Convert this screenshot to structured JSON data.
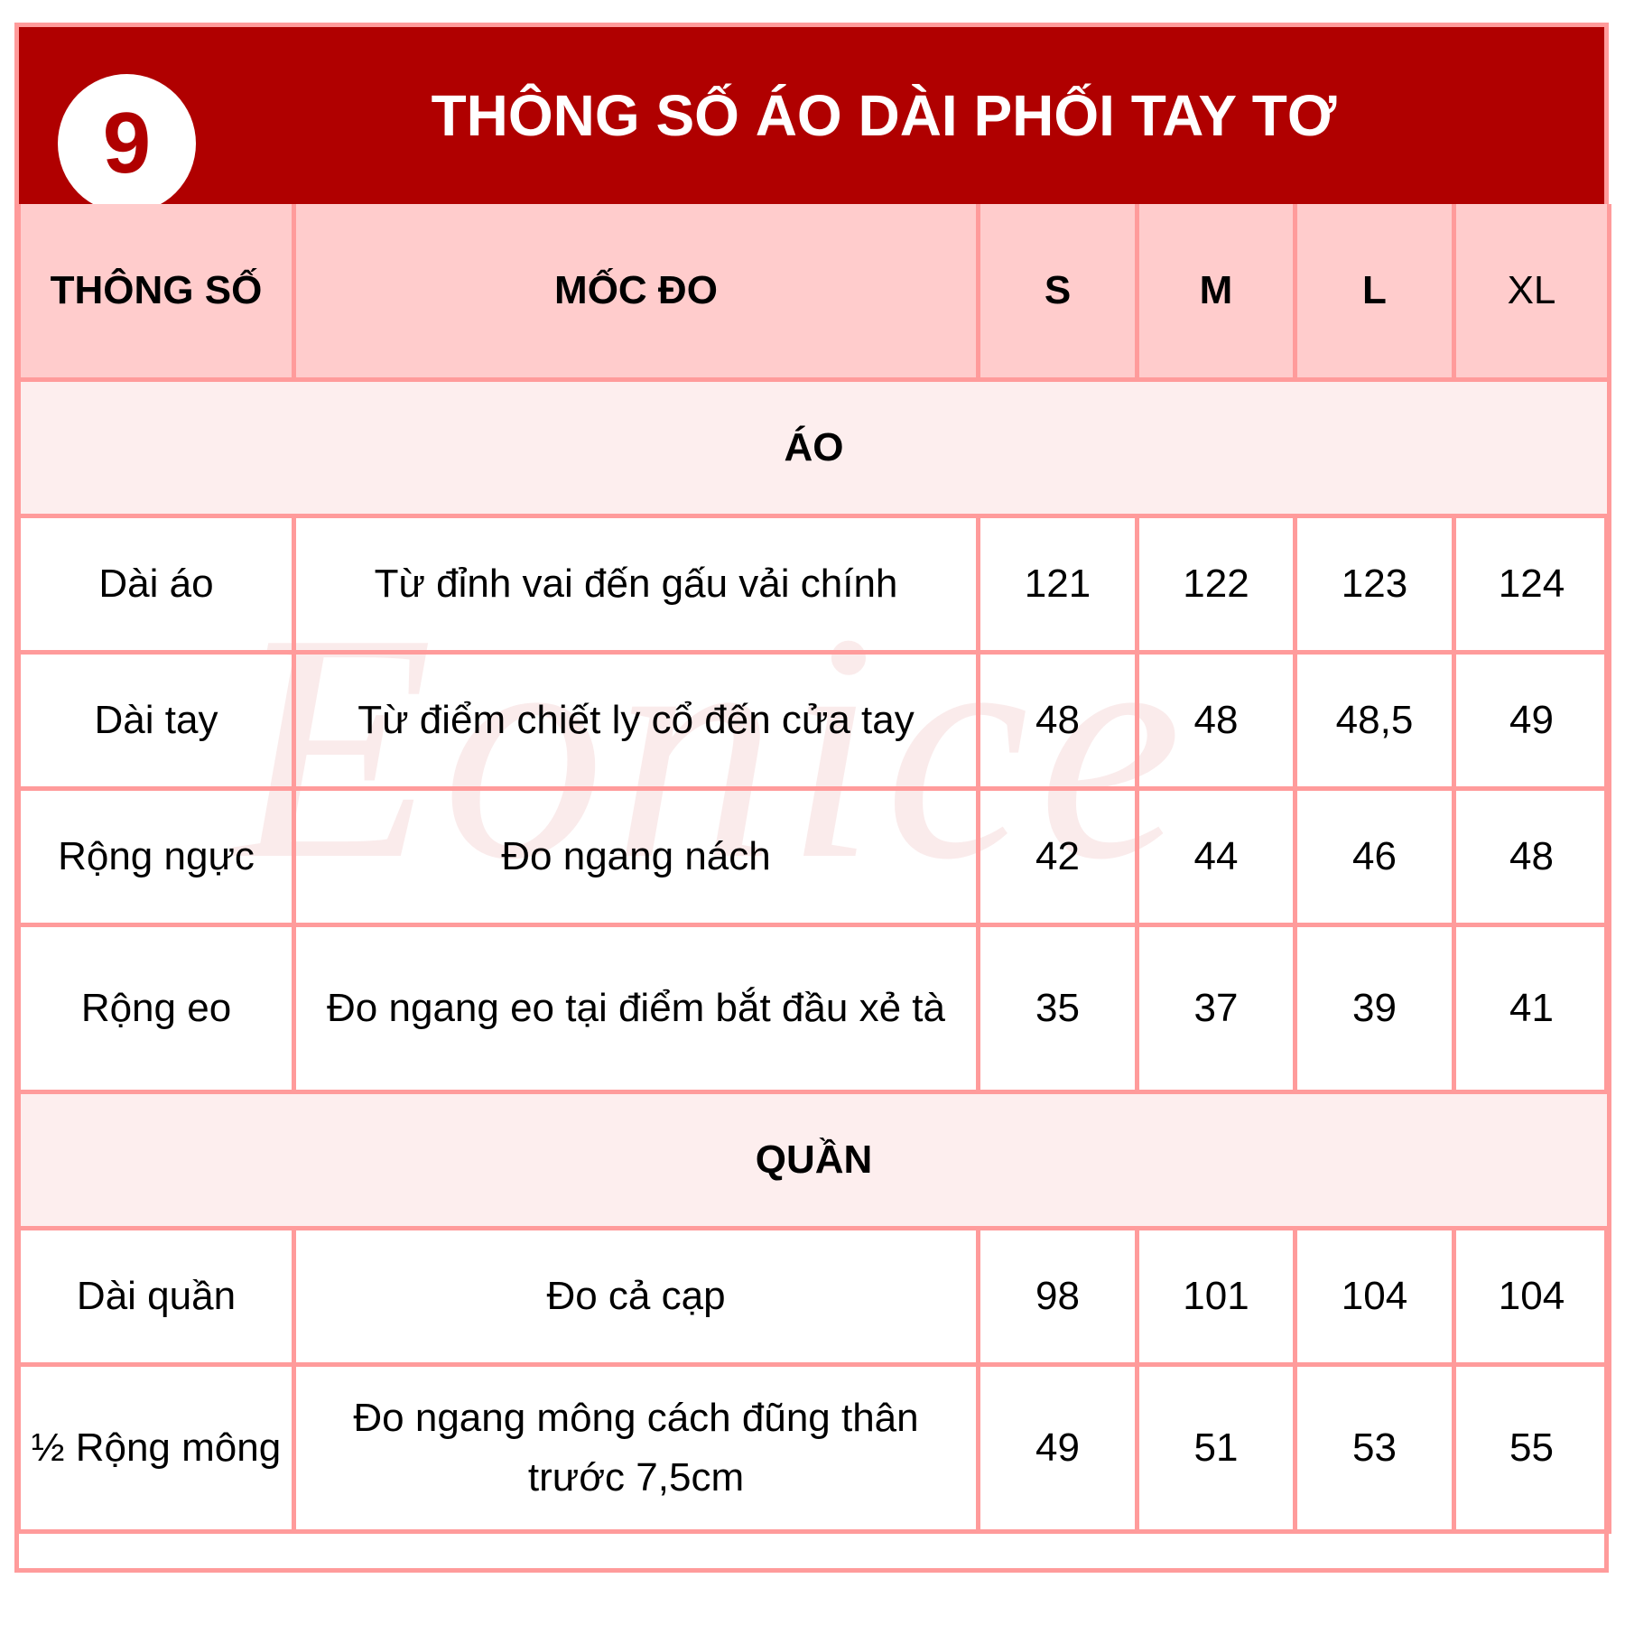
{
  "header": {
    "badge_number": "9",
    "title": "THÔNG SỐ ÁO DÀI PHỐI TAY TƠ"
  },
  "watermark": "Eonice",
  "colors": {
    "title_bg": "#b00000",
    "border": "#ff9b9b",
    "header_row_bg": "#ffcccc",
    "section_bg": "#fdeeee"
  },
  "columns": [
    "THÔNG SỐ",
    "MỐC ĐO",
    "S",
    "M",
    "L",
    "XL"
  ],
  "sections": [
    {
      "title": "ÁO",
      "rows": [
        {
          "name": "Dài áo",
          "measure": "Từ đỉnh vai đến gấu vải chính",
          "values": [
            "121",
            "122",
            "123",
            "124"
          ]
        },
        {
          "name": "Dài tay",
          "measure": "Từ điểm chiết ly cổ đến cửa tay",
          "values": [
            "48",
            "48",
            "48,5",
            "49"
          ]
        },
        {
          "name": "Rộng ngực",
          "measure": "Đo ngang nách",
          "values": [
            "42",
            "44",
            "46",
            "48"
          ]
        },
        {
          "name": "Rộng eo",
          "measure": "Đo ngang eo tại điểm bắt đầu xẻ tà",
          "values": [
            "35",
            "37",
            "39",
            "41"
          ]
        }
      ]
    },
    {
      "title": "QUẦN",
      "rows": [
        {
          "name": "Dài quần",
          "measure": "Đo cả cạp",
          "values": [
            "98",
            "101",
            "104",
            "104"
          ]
        },
        {
          "name": "½ Rộng mông",
          "measure": "Đo ngang mông cách đũng thân trước 7,5cm",
          "values": [
            "49",
            "51",
            "53",
            "55"
          ]
        }
      ]
    }
  ]
}
